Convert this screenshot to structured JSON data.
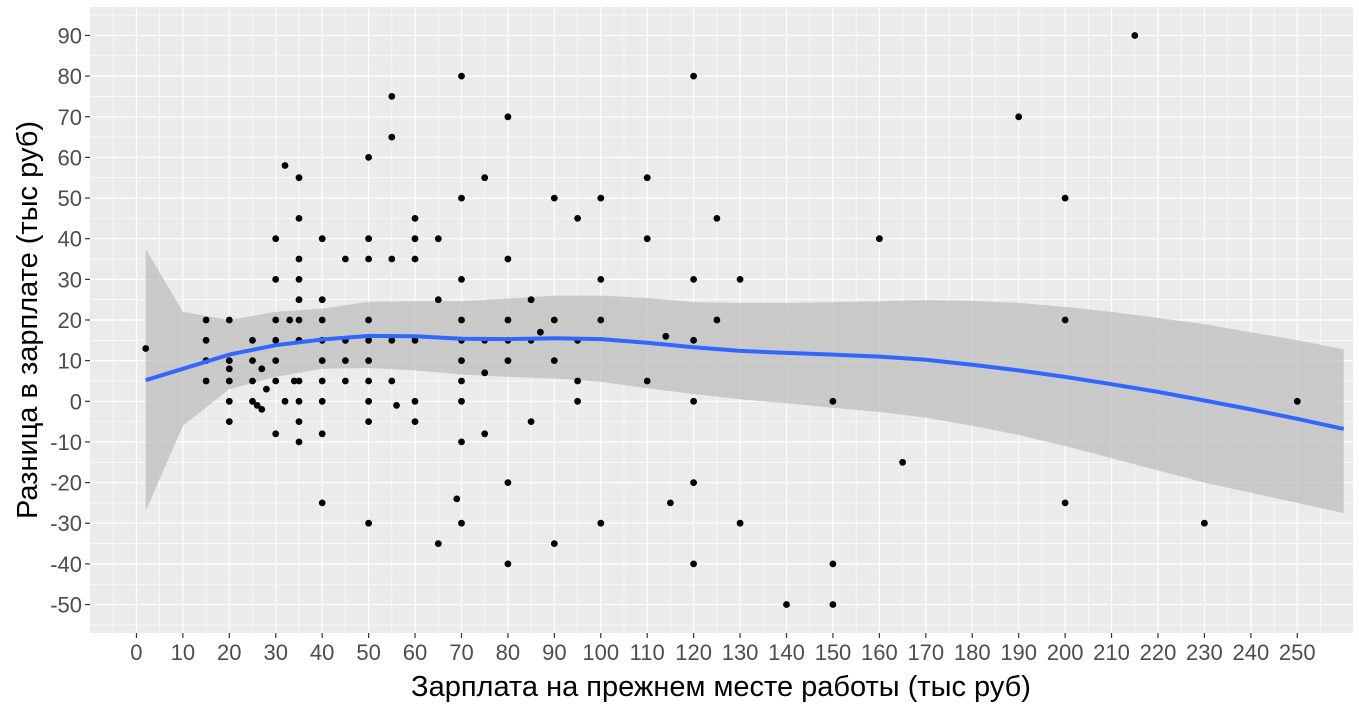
{
  "chart_data": {
    "type": "scatter",
    "xlabel": "Зарплата на прежнем месте работы (тыс руб)",
    "ylabel": "Разница в зарплате (тыс руб)",
    "xlim": [
      -10,
      262
    ],
    "ylim": [
      -57,
      97
    ],
    "x_ticks": [
      0,
      10,
      20,
      30,
      40,
      50,
      60,
      70,
      80,
      90,
      100,
      110,
      120,
      130,
      140,
      150,
      160,
      170,
      180,
      190,
      200,
      210,
      220,
      230,
      240,
      250
    ],
    "y_ticks": [
      -50,
      -40,
      -30,
      -20,
      -10,
      0,
      10,
      20,
      30,
      40,
      50,
      60,
      70,
      80,
      90
    ],
    "grid": true,
    "colors": {
      "panel": "#ebebeb",
      "grid": "#ffffff",
      "points": "#000000",
      "smooth_line": "#3366ff",
      "confidence_band": "#bdbdbd"
    },
    "points": [
      [
        2,
        13
      ],
      [
        15,
        20
      ],
      [
        15,
        15
      ],
      [
        15,
        10
      ],
      [
        15,
        5
      ],
      [
        20,
        20
      ],
      [
        20,
        10
      ],
      [
        20,
        8
      ],
      [
        20,
        5
      ],
      [
        20,
        0
      ],
      [
        20,
        -5
      ],
      [
        25,
        15
      ],
      [
        25,
        10
      ],
      [
        25,
        5
      ],
      [
        25,
        0
      ],
      [
        26,
        -1
      ],
      [
        27,
        -2
      ],
      [
        27,
        8
      ],
      [
        28,
        3
      ],
      [
        30,
        40
      ],
      [
        30,
        30
      ],
      [
        30,
        20
      ],
      [
        30,
        15
      ],
      [
        30,
        10
      ],
      [
        30,
        5
      ],
      [
        30,
        -8
      ],
      [
        32,
        58
      ],
      [
        32,
        0
      ],
      [
        33,
        20
      ],
      [
        34,
        5
      ],
      [
        35,
        55
      ],
      [
        35,
        45
      ],
      [
        35,
        35
      ],
      [
        35,
        30
      ],
      [
        35,
        25
      ],
      [
        35,
        20
      ],
      [
        35,
        15
      ],
      [
        35,
        5
      ],
      [
        35,
        0
      ],
      [
        35,
        -5
      ],
      [
        35,
        -10
      ],
      [
        40,
        40
      ],
      [
        40,
        25
      ],
      [
        40,
        20
      ],
      [
        40,
        15
      ],
      [
        40,
        10
      ],
      [
        40,
        5
      ],
      [
        40,
        0
      ],
      [
        40,
        -8
      ],
      [
        40,
        -25
      ],
      [
        45,
        35
      ],
      [
        45,
        15
      ],
      [
        45,
        10
      ],
      [
        45,
        5
      ],
      [
        50,
        60
      ],
      [
        50,
        40
      ],
      [
        50,
        35
      ],
      [
        50,
        20
      ],
      [
        50,
        15
      ],
      [
        50,
        10
      ],
      [
        50,
        5
      ],
      [
        50,
        0
      ],
      [
        50,
        -5
      ],
      [
        50,
        -30
      ],
      [
        55,
        75
      ],
      [
        55,
        65
      ],
      [
        55,
        35
      ],
      [
        55,
        15
      ],
      [
        55,
        5
      ],
      [
        56,
        -1
      ],
      [
        60,
        45
      ],
      [
        60,
        40
      ],
      [
        60,
        35
      ],
      [
        60,
        15
      ],
      [
        60,
        0
      ],
      [
        60,
        -5
      ],
      [
        65,
        40
      ],
      [
        65,
        25
      ],
      [
        65,
        -35
      ],
      [
        69,
        -24
      ],
      [
        70,
        80
      ],
      [
        70,
        50
      ],
      [
        70,
        30
      ],
      [
        70,
        20
      ],
      [
        70,
        15
      ],
      [
        70,
        10
      ],
      [
        70,
        5
      ],
      [
        70,
        0
      ],
      [
        70,
        -10
      ],
      [
        70,
        -30
      ],
      [
        75,
        55
      ],
      [
        75,
        15
      ],
      [
        75,
        7
      ],
      [
        75,
        -8
      ],
      [
        80,
        70
      ],
      [
        80,
        35
      ],
      [
        80,
        20
      ],
      [
        80,
        15
      ],
      [
        80,
        10
      ],
      [
        80,
        -20
      ],
      [
        80,
        -40
      ],
      [
        85,
        25
      ],
      [
        85,
        15
      ],
      [
        85,
        -5
      ],
      [
        87,
        17
      ],
      [
        90,
        50
      ],
      [
        90,
        20
      ],
      [
        90,
        10
      ],
      [
        90,
        -35
      ],
      [
        95,
        45
      ],
      [
        95,
        15
      ],
      [
        95,
        5
      ],
      [
        95,
        0
      ],
      [
        100,
        50
      ],
      [
        100,
        30
      ],
      [
        100,
        20
      ],
      [
        100,
        -30
      ],
      [
        110,
        55
      ],
      [
        110,
        40
      ],
      [
        110,
        5
      ],
      [
        114,
        16
      ],
      [
        115,
        -25
      ],
      [
        120,
        80
      ],
      [
        120,
        30
      ],
      [
        120,
        15
      ],
      [
        120,
        0
      ],
      [
        120,
        -20
      ],
      [
        120,
        -40
      ],
      [
        125,
        45
      ],
      [
        125,
        20
      ],
      [
        130,
        30
      ],
      [
        130,
        -30
      ],
      [
        140,
        -50
      ],
      [
        150,
        0
      ],
      [
        150,
        -40
      ],
      [
        150,
        -50
      ],
      [
        160,
        40
      ],
      [
        165,
        -15
      ],
      [
        190,
        70
      ],
      [
        200,
        50
      ],
      [
        200,
        20
      ],
      [
        200,
        -25
      ],
      [
        215,
        90
      ],
      [
        230,
        -30
      ],
      [
        250,
        0
      ]
    ],
    "smooth": {
      "x": [
        2,
        10,
        20,
        30,
        40,
        50,
        60,
        70,
        80,
        90,
        100,
        110,
        120,
        130,
        140,
        150,
        160,
        170,
        180,
        190,
        200,
        210,
        220,
        230,
        240,
        250,
        260
      ],
      "y": [
        5.2,
        8,
        11.5,
        13.8,
        15.2,
        16.1,
        16,
        15.4,
        15.3,
        15.5,
        15.3,
        14.4,
        13.3,
        12.4,
        11.9,
        11.5,
        11,
        10.2,
        9,
        7.6,
        6,
        4.2,
        2.3,
        0.2,
        -2,
        -4.3,
        -6.8
      ],
      "lower": [
        -27,
        -6,
        3,
        6,
        8,
        8.2,
        7.6,
        6.6,
        6,
        5.6,
        4.8,
        3.2,
        1.8,
        0.5,
        -0.5,
        -1.6,
        -2.6,
        -4,
        -6,
        -8.3,
        -11,
        -14,
        -17,
        -20,
        -22.5,
        -25,
        -27.5
      ],
      "upper": [
        37.5,
        22,
        20,
        22,
        22.8,
        24.5,
        24.6,
        24.6,
        25.3,
        26,
        26,
        25.4,
        24.4,
        24.2,
        24.2,
        24.4,
        24.6,
        24.9,
        24.7,
        24.2,
        23.2,
        22,
        20.5,
        19,
        17,
        15,
        12.8
      ]
    }
  }
}
